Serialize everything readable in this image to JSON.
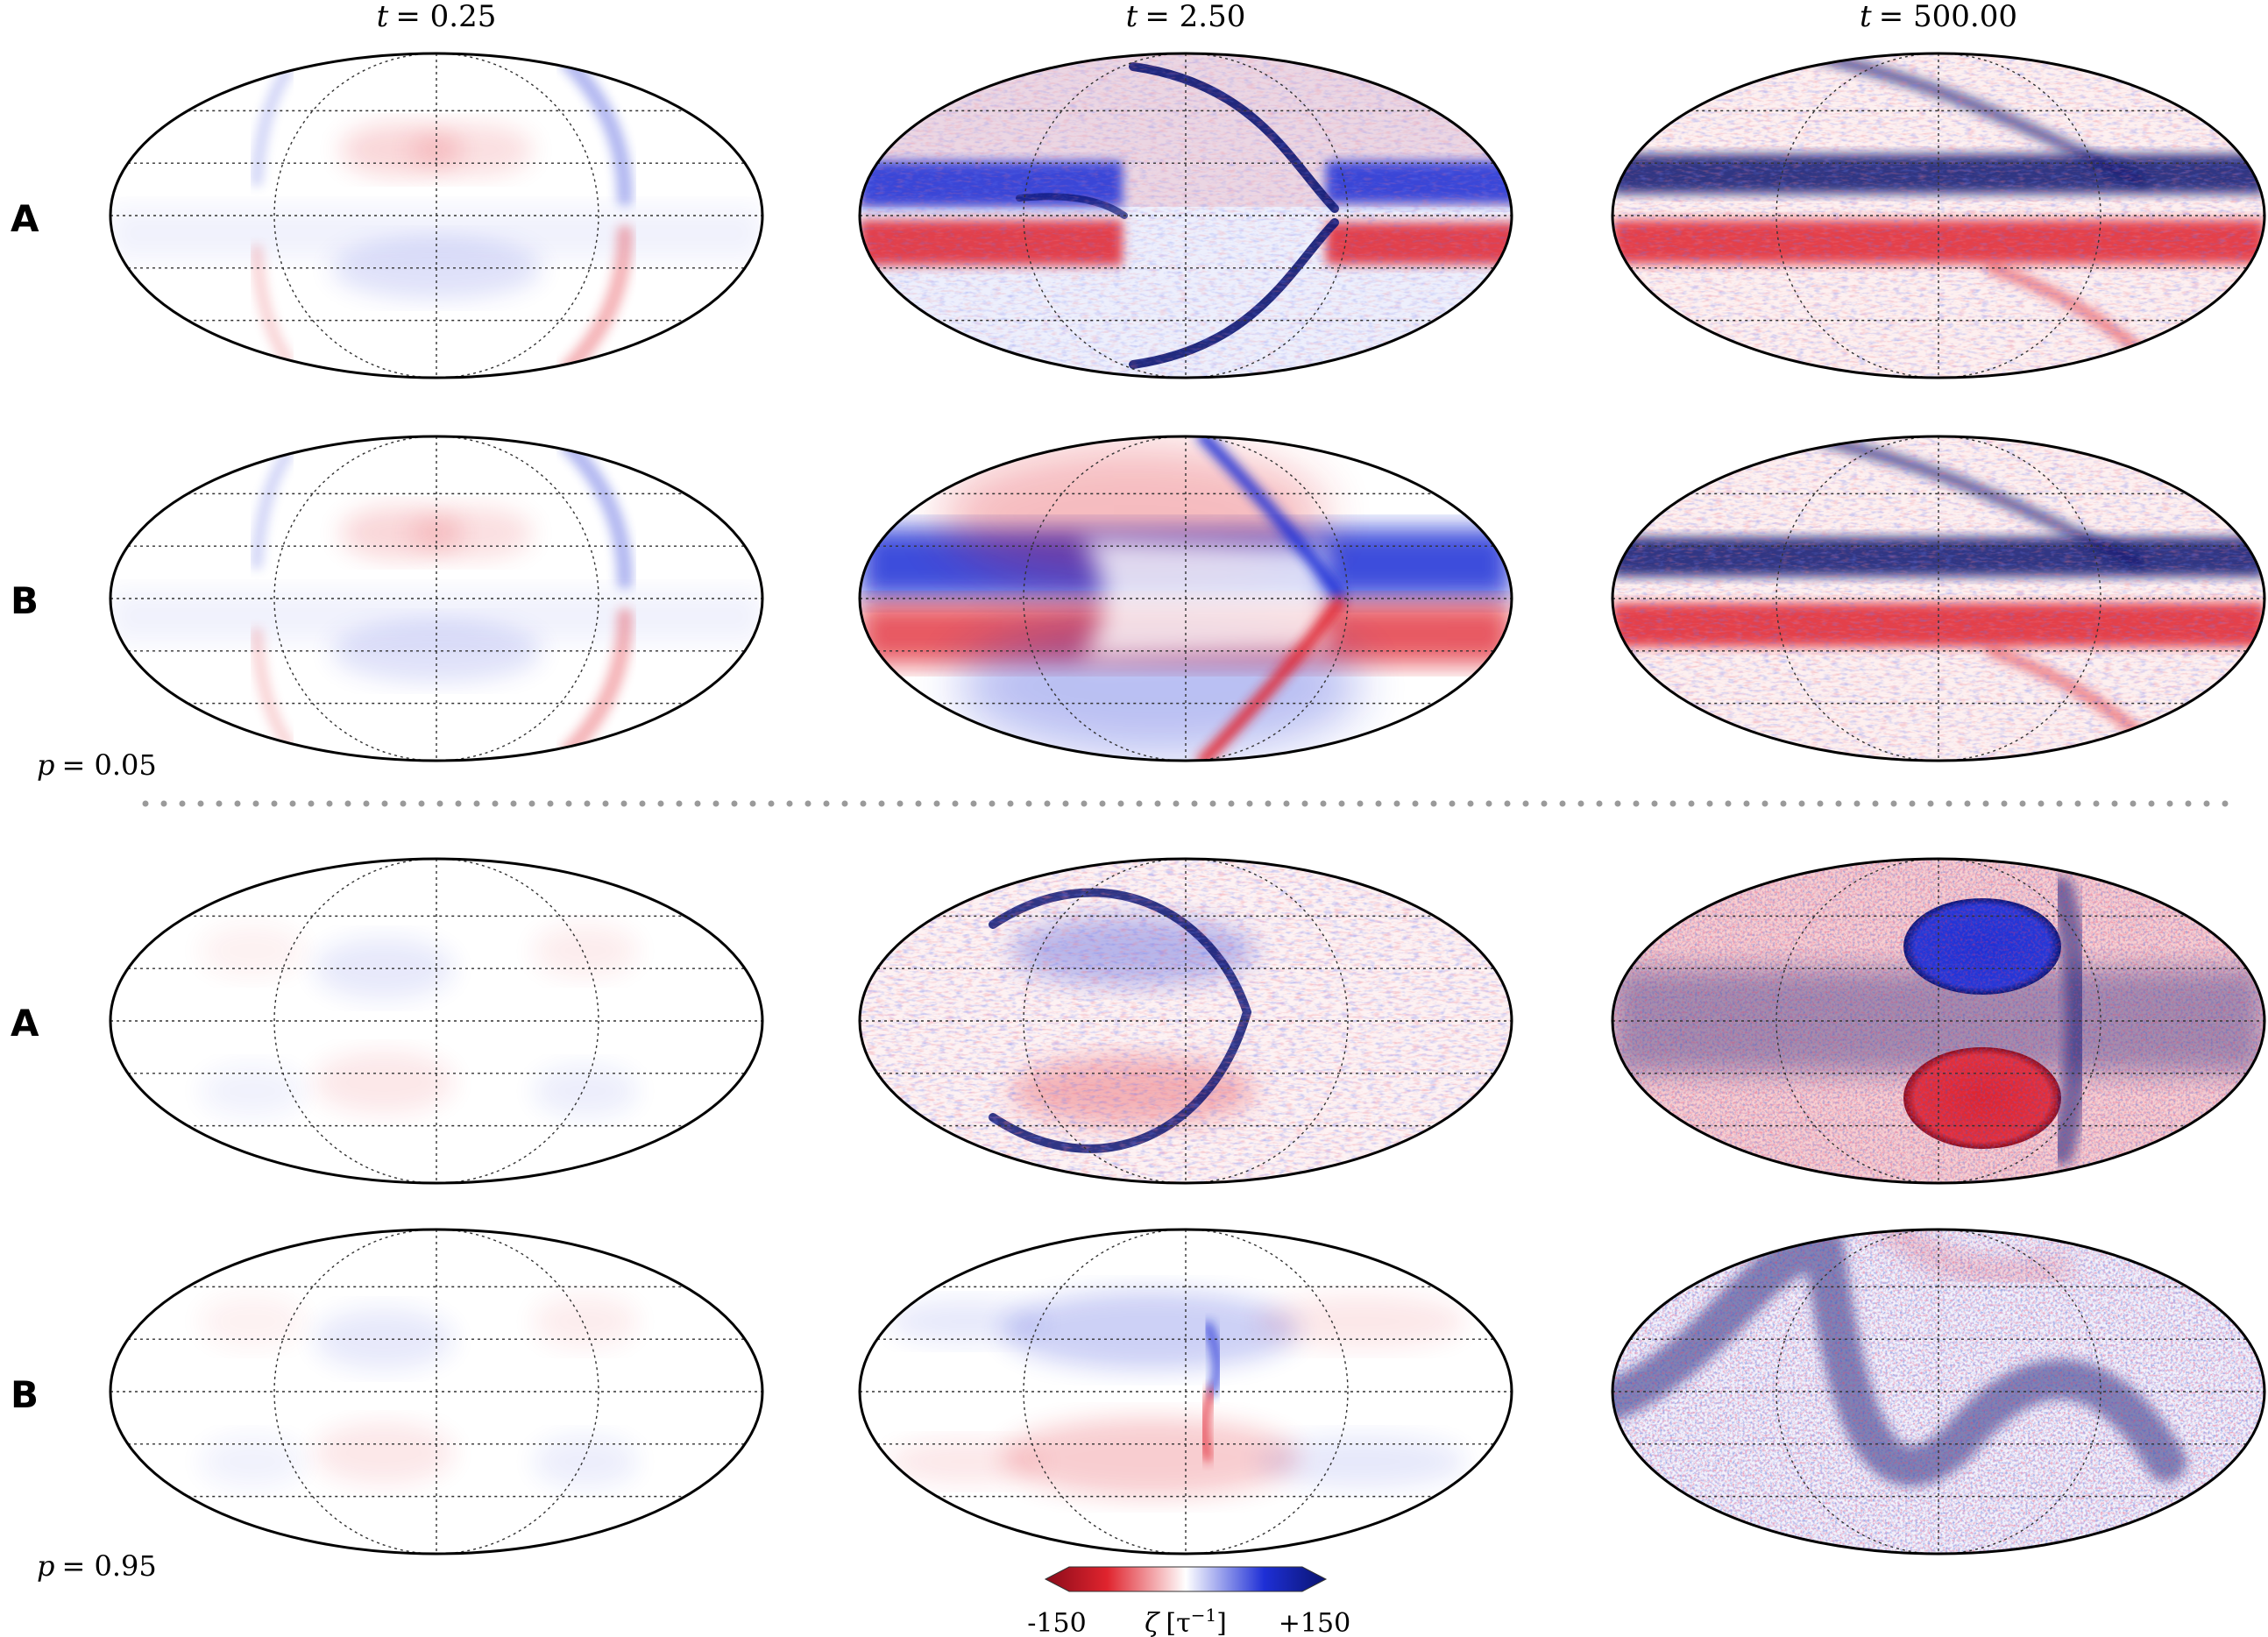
{
  "columns": [
    {
      "var": "t",
      "value": "= 0.25"
    },
    {
      "var": "t",
      "value": "= 2.50"
    },
    {
      "var": "t",
      "value": "= 500.00"
    }
  ],
  "row_labels": [
    "A",
    "B",
    "A",
    "B"
  ],
  "groups": [
    {
      "var": "p",
      "value": "= 0.05"
    },
    {
      "var": "p",
      "value": "= 0.95"
    }
  ],
  "colorbar": {
    "min_label": "-150",
    "max_label": "+150",
    "symbol": "ζ",
    "unit": "[τ",
    "unit_exp": "−1",
    "unit_close": "]",
    "colors": [
      "#67001f",
      "#d6202a",
      "#ffffff",
      "#2233d0",
      "#08104a"
    ]
  },
  "palette": {
    "red": "#e0242e",
    "blue": "#1e2fd6",
    "dark_red": "#8a0b1a",
    "dark_blue": "#0a1470"
  },
  "panels": [
    {
      "group": "p = 0.05",
      "row": "A",
      "time": "t = 0.25",
      "pattern": "weak-early"
    },
    {
      "group": "p = 0.05",
      "row": "A",
      "time": "t = 2.50",
      "pattern": "equatorial-jets-front"
    },
    {
      "group": "p = 0.05",
      "row": "A",
      "time": "t = 500.00",
      "pattern": "turbulent-jets"
    },
    {
      "group": "p = 0.05",
      "row": "B",
      "time": "t = 0.25",
      "pattern": "weak-early"
    },
    {
      "group": "p = 0.05",
      "row": "B",
      "time": "t = 2.50",
      "pattern": "smooth-front"
    },
    {
      "group": "p = 0.05",
      "row": "B",
      "time": "t = 500.00",
      "pattern": "turbulent-jets"
    },
    {
      "group": "p = 0.95",
      "row": "A",
      "time": "t = 0.25",
      "pattern": "faint-early"
    },
    {
      "group": "p = 0.95",
      "row": "A",
      "time": "t = 2.50",
      "pattern": "c-front"
    },
    {
      "group": "p = 0.95",
      "row": "A",
      "time": "t = 500.00",
      "pattern": "vortex-pair"
    },
    {
      "group": "p = 0.95",
      "row": "B",
      "time": "t = 0.25",
      "pattern": "faint-early"
    },
    {
      "group": "p = 0.95",
      "row": "B",
      "time": "t = 2.50",
      "pattern": "faint-front"
    },
    {
      "group": "p = 0.95",
      "row": "B",
      "time": "t = 500.00",
      "pattern": "turbulent-band"
    }
  ]
}
